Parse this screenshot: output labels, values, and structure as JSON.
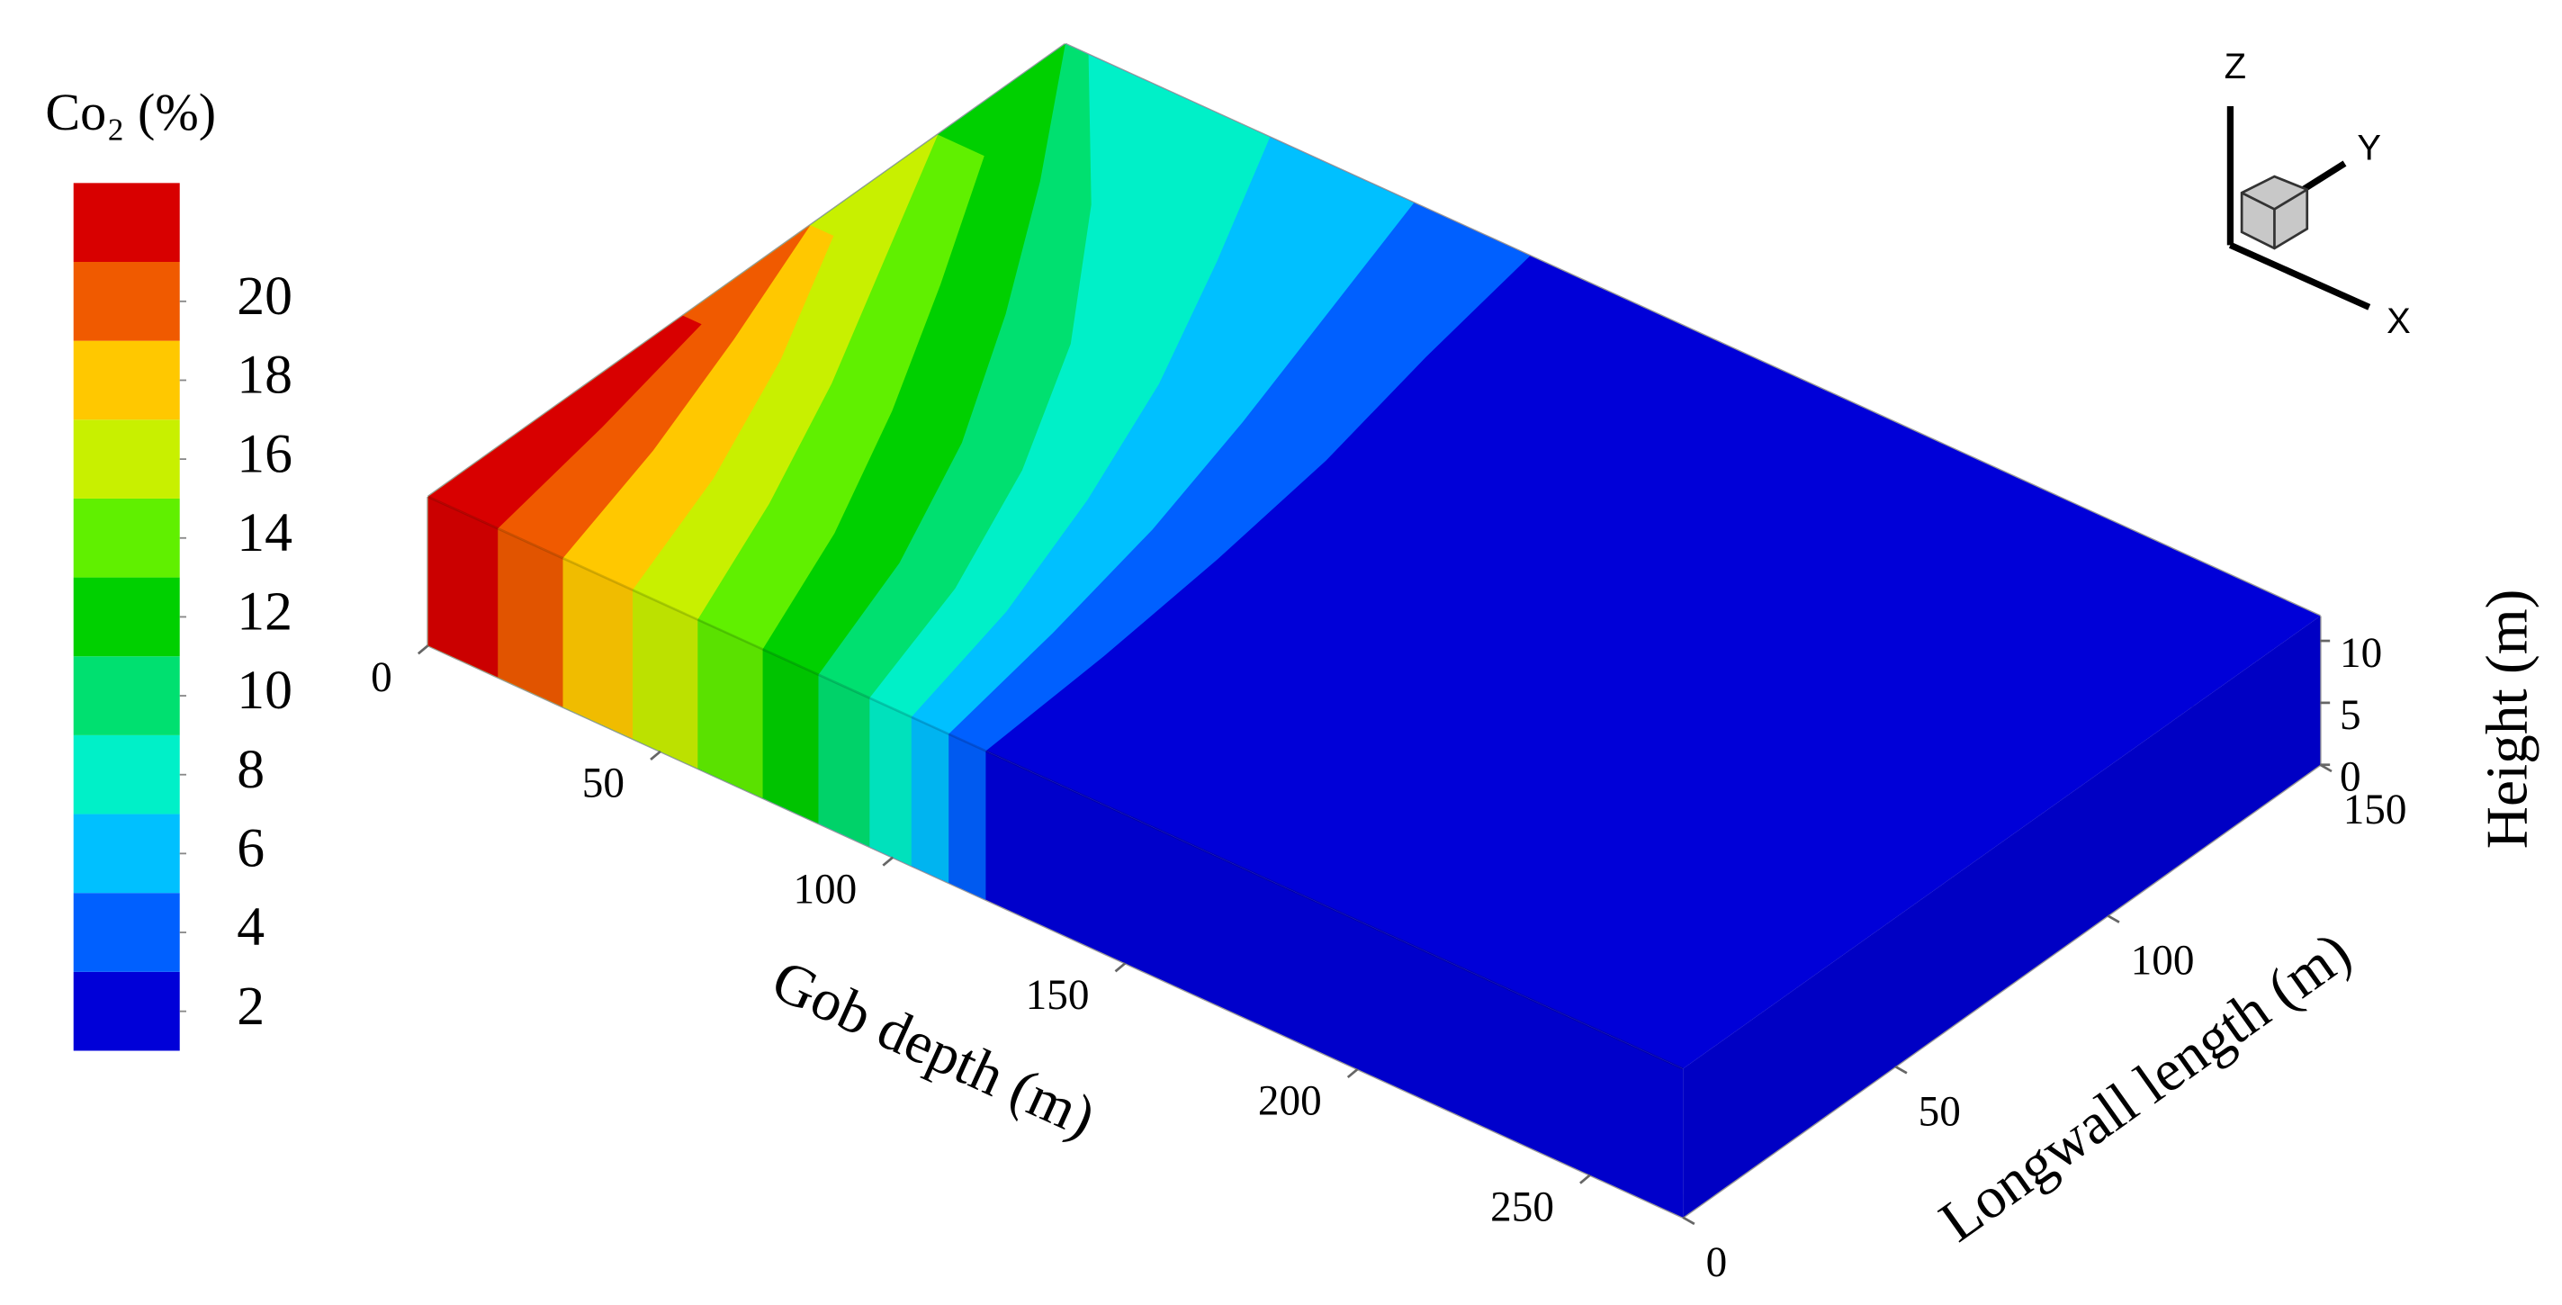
{
  "chart_data": {
    "type": "contour3d",
    "colorbar_title": "Co₂ (%)",
    "clim": [
      1,
      23
    ],
    "cticks": [
      2,
      4,
      6,
      8,
      10,
      12,
      14,
      16,
      18,
      20
    ],
    "colors": [
      "#0000d8",
      "#0060ff",
      "#00c0ff",
      "#00f0c8",
      "#00e070",
      "#00d000",
      "#60f000",
      "#c8f000",
      "#ffc800",
      "#f05a00",
      "#d80000"
    ],
    "xlabel": "Gob depth (m)",
    "ylabel": "Longwall length (m)",
    "zlabel": "Height (m)",
    "xlim": [
      0,
      270
    ],
    "xticks": [
      0,
      50,
      100,
      150,
      200,
      250
    ],
    "ylim": [
      0,
      150
    ],
    "yticks": [
      0,
      50,
      100,
      150
    ],
    "zlim": [
      0,
      12
    ],
    "zticks": [
      0,
      5,
      10
    ],
    "contour_y": [
      0,
      30,
      60,
      90,
      120,
      150
    ],
    "contours": [
      {
        "level": 3,
        "x": [
          120,
          118,
          115,
          111,
          105,
          100
        ]
      },
      {
        "level": 5,
        "x": [
          112,
          107,
          101,
          93,
          84,
          75
        ]
      },
      {
        "level": 7,
        "x": [
          104,
          97,
          87,
          75,
          60,
          44
        ]
      },
      {
        "level": 9,
        "x": [
          95,
          86,
          73,
          56,
          33,
          5
        ]
      },
      {
        "level": 11,
        "x": [
          84,
          74,
          60,
          42,
          22,
          0
        ]
      },
      {
        "level": 13,
        "x": [
          72,
          60,
          45,
          28,
          10,
          null
        ]
      },
      {
        "level": 15,
        "x": [
          58,
          46,
          32,
          16,
          0,
          null
        ]
      },
      {
        "level": 17,
        "x": [
          44,
          34,
          21,
          5,
          null,
          null
        ]
      },
      {
        "level": 19,
        "x": [
          29,
          21,
          11,
          0,
          null,
          null
        ]
      },
      {
        "level": 21,
        "x": [
          15,
          10,
          4,
          null,
          null,
          null
        ]
      }
    ],
    "axis_triad": [
      "X",
      "Y",
      "Z"
    ]
  }
}
